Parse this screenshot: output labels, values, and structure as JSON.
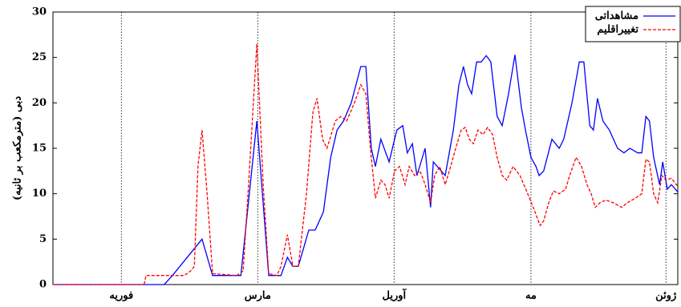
{
  "chart_data": {
    "type": "line",
    "ylabel": "دبی (مترمکعب بر ثانیه)",
    "xlim": [
      0,
      137
    ],
    "ylim": [
      0,
      30
    ],
    "yticks": [
      0,
      5,
      10,
      15,
      20,
      25,
      30
    ],
    "xticks": [
      {
        "value": 15,
        "label": "فوریه"
      },
      {
        "value": 44.9,
        "label": "مارس"
      },
      {
        "value": 74.8,
        "label": "آوریل"
      },
      {
        "value": 104.8,
        "label": "مه"
      },
      {
        "value": 134.4,
        "label": "ژوئن"
      }
    ],
    "grid": true,
    "legend": "upper right",
    "series": [
      {
        "name": "مشاهداتی",
        "color": "#0000ff",
        "dash": "solid",
        "x": [
          0,
          24.4,
          26.2,
          32.7,
          35,
          41.2,
          44.7,
          47.3,
          50,
          51.4,
          52.6,
          53.8,
          56.1,
          57.5,
          59.3,
          60.9,
          62.3,
          63.7,
          65.4,
          67.5,
          68.6,
          69.8,
          70.7,
          71.9,
          73.7,
          75.4,
          76.7,
          77.7,
          78.8,
          79.8,
          81.6,
          82.8,
          83.4,
          86,
          87.8,
          89,
          90,
          90.9,
          91.8,
          92.9,
          93.9,
          95,
          96,
          97.4,
          98.5,
          99.9,
          101.3,
          102.7,
          103.6,
          104.8,
          105.9,
          106.6,
          107.6,
          109.4,
          111,
          112,
          113.8,
          115.4,
          116.4,
          117.7,
          118.5,
          119.4,
          120.6,
          122,
          123.8,
          125.2,
          126.5,
          128.2,
          129.1,
          130,
          130.8,
          131.7,
          133,
          133.7,
          134.7,
          135.6,
          137
        ],
        "values": [
          0,
          0,
          1,
          5,
          1,
          1,
          18,
          1,
          1,
          3,
          2,
          2,
          6,
          6,
          8,
          14,
          17,
          18,
          20,
          24,
          24,
          15,
          13,
          16,
          13.5,
          17,
          17.5,
          14.5,
          15.5,
          12,
          15,
          8.5,
          13.5,
          12,
          17,
          22,
          24,
          22,
          21,
          24.5,
          24.5,
          25.2,
          24.5,
          18.5,
          17.5,
          21,
          25.3,
          19.5,
          17,
          14,
          13,
          12,
          12.5,
          16,
          15,
          16,
          20,
          24.5,
          24.5,
          17.5,
          17,
          20.5,
          18,
          17,
          15,
          14.5,
          15,
          14.5,
          14.5,
          18.5,
          18,
          14,
          11,
          13.5,
          10.5,
          11,
          10.2
        ]
      },
      {
        "name": "تغییراقلیم",
        "color": "#ff0000",
        "dash": "dashed",
        "x": [
          0,
          20,
          20.4,
          28.8,
          30.2,
          31,
          31.8,
          32.7,
          33.8,
          35,
          40.3,
          41.7,
          42.9,
          44.7,
          46.1,
          47.3,
          49.1,
          50,
          51.4,
          52.6,
          53.8,
          55.6,
          57,
          57.9,
          59.1,
          60.1,
          61.9,
          63.1,
          64.4,
          66.1,
          67.5,
          68.6,
          69.6,
          70.7,
          71.9,
          72.8,
          73.7,
          74.9,
          76,
          77.2,
          78.1,
          79.3,
          80.5,
          81.6,
          82.8,
          83.7,
          84.8,
          86,
          87.2,
          88.3,
          89.5,
          90.4,
          91.3,
          92.2,
          93.2,
          94.3,
          95.3,
          96.4,
          97.4,
          98.5,
          99.5,
          100.9,
          102.4,
          104.5,
          105.7,
          106.8,
          107.6,
          108.7,
          109.7,
          111,
          112.4,
          113.3,
          114.7,
          115.9,
          117.1,
          118,
          118.9,
          119.9,
          121.2,
          122.9,
          124.7,
          125.9,
          127.7,
          129.1,
          130,
          130.8,
          131.7,
          132.6,
          133.5,
          134.4,
          135.6,
          137
        ],
        "values": [
          0,
          0,
          1,
          1,
          1.5,
          2,
          13,
          17,
          10,
          1.2,
          1,
          1.5,
          11,
          26.5,
          11,
          1.2,
          1,
          2,
          5.5,
          2,
          2,
          10,
          19,
          20.5,
          16,
          15,
          18,
          18.5,
          18,
          20,
          22,
          21,
          15,
          9.5,
          11.5,
          11,
          9.5,
          12.5,
          13,
          11,
          13,
          12,
          12.5,
          11,
          9,
          12,
          13,
          11,
          13,
          15,
          17,
          17.3,
          16,
          15.5,
          17,
          16.5,
          17.3,
          16.5,
          14,
          12,
          11.5,
          13,
          12,
          9.5,
          8,
          6.5,
          7,
          9,
          10.3,
          10,
          10.5,
          12,
          14,
          13,
          11,
          10,
          8.5,
          9,
          9.3,
          9,
          8.5,
          9,
          9.5,
          10,
          13.8,
          13.5,
          10,
          9,
          12,
          11.5,
          11.7,
          10.8
        ]
      }
    ]
  }
}
